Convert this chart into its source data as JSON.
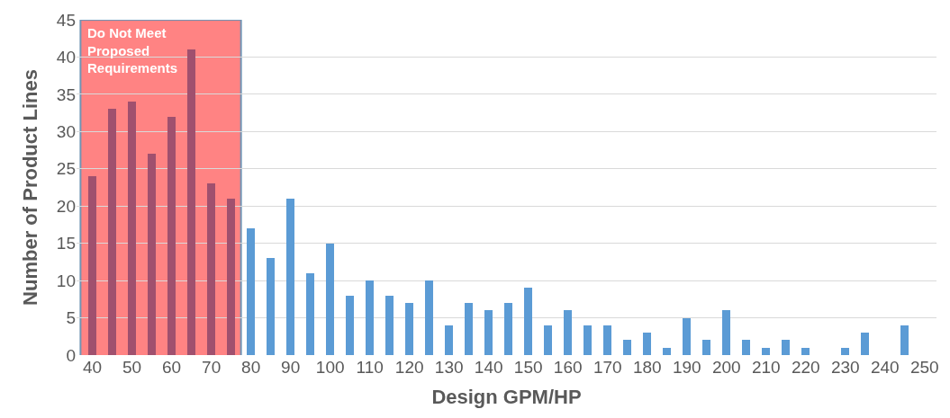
{
  "chart_data": {
    "type": "bar",
    "xlabel": "Design GPM/HP",
    "ylabel": "Number of Product Lines",
    "x": [
      40,
      45,
      50,
      55,
      60,
      65,
      70,
      75,
      80,
      85,
      90,
      95,
      100,
      105,
      110,
      115,
      120,
      125,
      130,
      135,
      140,
      145,
      150,
      155,
      160,
      165,
      170,
      175,
      180,
      185,
      190,
      195,
      200,
      205,
      210,
      215,
      220,
      225,
      230,
      235,
      240,
      245
    ],
    "values": [
      24,
      33,
      34,
      27,
      32,
      41,
      23,
      21,
      17,
      13,
      21,
      11,
      15,
      8,
      10,
      8,
      7,
      10,
      4,
      7,
      6,
      7,
      9,
      4,
      6,
      4,
      4,
      2,
      3,
      1,
      5,
      2,
      6,
      2,
      1,
      2,
      1,
      0,
      1,
      3,
      0,
      4
    ],
    "colors": [
      "#a0506e",
      "#a0506e",
      "#a0506e",
      "#a0506e",
      "#a0506e",
      "#a0506e",
      "#a0506e",
      "#a0506e",
      "#5b9bd5",
      "#5b9bd5",
      "#5b9bd5",
      "#5b9bd5",
      "#5b9bd5",
      "#5b9bd5",
      "#5b9bd5",
      "#5b9bd5",
      "#5b9bd5",
      "#5b9bd5",
      "#5b9bd5",
      "#5b9bd5",
      "#5b9bd5",
      "#5b9bd5",
      "#5b9bd5",
      "#5b9bd5",
      "#5b9bd5",
      "#5b9bd5",
      "#5b9bd5",
      "#5b9bd5",
      "#5b9bd5",
      "#5b9bd5",
      "#5b9bd5",
      "#5b9bd5",
      "#5b9bd5",
      "#5b9bd5",
      "#5b9bd5",
      "#5b9bd5",
      "#5b9bd5",
      "#5b9bd5",
      "#5b9bd5",
      "#5b9bd5",
      "#5b9bd5",
      "#5b9bd5"
    ],
    "xlim": [
      36,
      253
    ],
    "xticks": [
      40,
      50,
      60,
      70,
      80,
      90,
      100,
      110,
      120,
      130,
      140,
      150,
      160,
      170,
      180,
      190,
      200,
      210,
      220,
      230,
      240,
      250
    ],
    "ylim": [
      0,
      45
    ],
    "yticks": [
      0,
      5,
      10,
      15,
      20,
      25,
      30,
      35,
      40,
      45
    ],
    "bands": [
      {
        "axis": "x",
        "from": 37,
        "to": 77.5,
        "label": "Do Not Meet\nProposed\nRequirements",
        "color": "#ff5a5a"
      }
    ],
    "grid": "y"
  }
}
